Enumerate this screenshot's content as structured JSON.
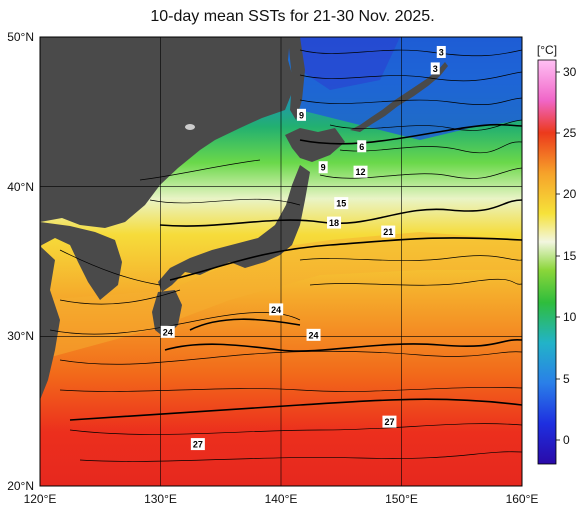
{
  "title": "10-day mean SSTs for 21-30 Nov. 2025.",
  "map": {
    "lon_ticks": [
      "120°E",
      "130°E",
      "140°E",
      "150°E",
      "160°E"
    ],
    "lat_ticks": [
      "50°N",
      "40°N",
      "30°N",
      "20°N"
    ],
    "extent": {
      "lon": [
        120,
        160
      ],
      "lat": [
        20,
        50
      ]
    },
    "grid": "10 degrees",
    "land_color": "#4a4a4a",
    "contour_labels": [
      {
        "text": "3",
        "lon": 153.3,
        "lat": 49.0
      },
      {
        "text": "3",
        "lon": 152.8,
        "lat": 47.9
      },
      {
        "text": "9",
        "lon": 141.7,
        "lat": 44.8
      },
      {
        "text": "6",
        "lon": 146.7,
        "lat": 42.7
      },
      {
        "text": "9",
        "lon": 143.5,
        "lat": 41.3
      },
      {
        "text": "12",
        "lon": 146.6,
        "lat": 41.0
      },
      {
        "text": "15",
        "lon": 145.0,
        "lat": 38.9
      },
      {
        "text": "18",
        "lon": 144.4,
        "lat": 37.6
      },
      {
        "text": "21",
        "lon": 148.9,
        "lat": 37.0
      },
      {
        "text": "24",
        "lon": 139.6,
        "lat": 31.8
      },
      {
        "text": "24",
        "lon": 130.6,
        "lat": 30.3
      },
      {
        "text": "24",
        "lon": 142.7,
        "lat": 30.1
      },
      {
        "text": "27",
        "lon": 149.0,
        "lat": 24.3
      },
      {
        "text": "27",
        "lon": 133.1,
        "lat": 22.8
      }
    ]
  },
  "colorbar": {
    "unit": "[°C]",
    "ticks": [
      "30",
      "25",
      "20",
      "15",
      "10",
      "5",
      "0"
    ],
    "range": [
      -2,
      31
    ]
  }
}
